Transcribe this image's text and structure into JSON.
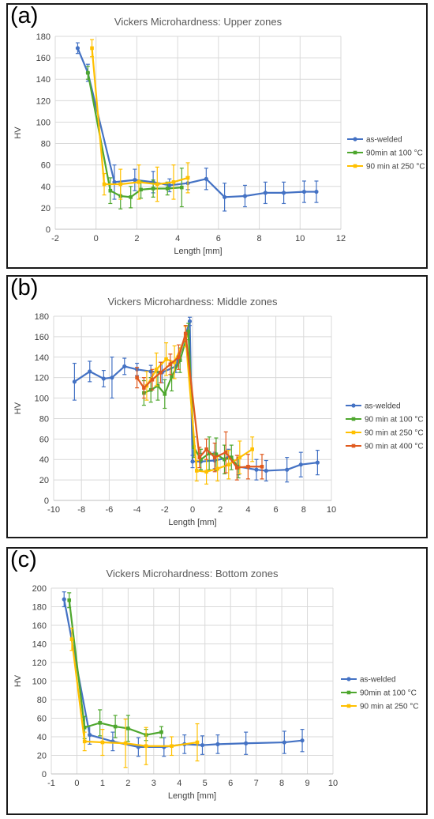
{
  "chart_data": [
    {
      "type": "line",
      "panel_label": "(a)",
      "title": "Vickers Microhardness: Upper zones",
      "xlabel": "Length [mm]",
      "ylabel": "HV",
      "xlim": [
        -2,
        12
      ],
      "ylim": [
        0,
        180
      ],
      "xticks": [
        -2,
        0,
        2,
        4,
        6,
        8,
        10,
        12
      ],
      "yticks": [
        0,
        20,
        40,
        60,
        80,
        100,
        120,
        140,
        160,
        180
      ],
      "grid": true,
      "legend_position": "right",
      "series": [
        {
          "name": "as-welded",
          "color": "#4472C4",
          "x": [
            -0.9,
            -0.4,
            0.9,
            1.9,
            2.8,
            3.6,
            4.5,
            5.4,
            6.3,
            7.3,
            8.3,
            9.2,
            10.2,
            10.8
          ],
          "y": [
            169,
            146,
            44,
            46,
            44,
            41,
            43,
            47,
            30,
            31,
            34,
            34,
            35,
            35
          ],
          "err": [
            5,
            8,
            16,
            10,
            10,
            6,
            6,
            10,
            13,
            10,
            10,
            10,
            10,
            10
          ]
        },
        {
          "name": "90min at 100 °C",
          "color": "#4EA72E",
          "x": [
            -0.4,
            0.7,
            1.2,
            1.7,
            2.2,
            2.8,
            3.5,
            4.2
          ],
          "y": [
            146,
            36,
            31,
            30,
            37,
            38,
            38,
            39
          ],
          "err": [
            6,
            12,
            12,
            10,
            8,
            8,
            6,
            18
          ]
        },
        {
          "name": "90 min at 250 °C",
          "color": "#FFC000",
          "x": [
            -0.2,
            0.4,
            1.2,
            2.1,
            3.0,
            3.8,
            4.5
          ],
          "y": [
            169,
            42,
            42,
            44,
            42,
            44,
            48
          ],
          "err": [
            8,
            10,
            14,
            16,
            16,
            16,
            14
          ]
        }
      ]
    },
    {
      "type": "line",
      "panel_label": "(b)",
      "title": "Vickers Microhardness: Middle zones",
      "xlabel": "Length [mm]",
      "ylabel": "HV",
      "xlim": [
        -10,
        10
      ],
      "ylim": [
        0,
        180
      ],
      "xticks": [
        -10,
        -8,
        -6,
        -4,
        -2,
        0,
        2,
        4,
        6,
        8,
        10
      ],
      "yticks": [
        0,
        20,
        40,
        60,
        80,
        100,
        120,
        140,
        160,
        180
      ],
      "grid": true,
      "legend_position": "right",
      "series": [
        {
          "name": "as-welded",
          "color": "#4472C4",
          "x": [
            -8.5,
            -7.4,
            -6.4,
            -5.8,
            -4.9,
            -4.0,
            -3.0,
            -2.2,
            -1.2,
            -0.2,
            0.0,
            0.6,
            1.6,
            2.6,
            3.3,
            4.6,
            5.3,
            6.8,
            7.8,
            9.0
          ],
          "y": [
            116,
            126,
            119,
            120,
            131,
            128,
            126,
            125,
            131,
            175,
            38,
            38,
            39,
            42,
            33,
            30,
            29,
            30,
            35,
            37
          ],
          "err": [
            18,
            10,
            8,
            20,
            8,
            6,
            6,
            10,
            6,
            4,
            6,
            8,
            8,
            8,
            8,
            10,
            10,
            12,
            12,
            12
          ]
        },
        {
          "name": "90 min at 100 °C",
          "color": "#4EA72E",
          "x": [
            -3.5,
            -3.0,
            -2.5,
            -2.0,
            -1.5,
            -0.9,
            -0.3,
            0.1,
            0.6,
            1.2,
            1.7,
            2.3,
            2.8,
            3.3
          ],
          "y": [
            105,
            108,
            112,
            104,
            121,
            137,
            165,
            52,
            40,
            46,
            45,
            40,
            42,
            32
          ],
          "err": [
            12,
            12,
            14,
            14,
            14,
            12,
            8,
            10,
            10,
            16,
            16,
            14,
            12,
            10
          ]
        },
        {
          "name": "90 min at 250 °C",
          "color": "#FFC000",
          "x": [
            -3.3,
            -2.6,
            -1.9,
            -1.3,
            -0.5,
            0.3,
            1.0,
            1.8,
            2.6,
            3.4,
            4.3
          ],
          "y": [
            112,
            128,
            138,
            135,
            160,
            29,
            28,
            31,
            35,
            42,
            50
          ],
          "err": [
            14,
            16,
            16,
            16,
            10,
            10,
            12,
            12,
            14,
            16,
            12
          ]
        },
        {
          "name": "90 min at 400 °C",
          "color": "#E05A1E",
          "x": [
            -4.0,
            -3.5,
            -2.9,
            -2.3,
            -1.6,
            -1.0,
            -0.5,
            0.5,
            1.0,
            1.6,
            2.4,
            3.2,
            4.0,
            5.0
          ],
          "y": [
            120,
            110,
            118,
            125,
            133,
            140,
            163,
            42,
            50,
            42,
            47,
            32,
            33,
            33
          ],
          "err": [
            10,
            10,
            10,
            10,
            10,
            12,
            8,
            10,
            10,
            14,
            20,
            12,
            12,
            12
          ]
        }
      ]
    },
    {
      "type": "line",
      "panel_label": "(c)",
      "title": "Vickers Microhardness: Bottom zones",
      "xlabel": "Length [mm]",
      "ylabel": "HV",
      "xlim": [
        -1,
        10
      ],
      "ylim": [
        0,
        200
      ],
      "xticks": [
        -1,
        0,
        1,
        2,
        3,
        4,
        5,
        6,
        7,
        8,
        9,
        10
      ],
      "yticks": [
        0,
        20,
        40,
        60,
        80,
        100,
        120,
        140,
        160,
        180,
        200
      ],
      "grid": true,
      "legend_position": "right",
      "series": [
        {
          "name": "as-welded",
          "color": "#4472C4",
          "x": [
            -0.5,
            0.5,
            1.4,
            2.4,
            3.4,
            4.2,
            4.9,
            5.5,
            6.6,
            8.1,
            8.8
          ],
          "y": [
            188,
            42,
            35,
            29,
            29,
            32,
            31,
            32,
            33,
            34,
            36
          ],
          "err": [
            8,
            10,
            10,
            10,
            10,
            10,
            10,
            10,
            12,
            12,
            12
          ]
        },
        {
          "name": "90min at 100 °C",
          "color": "#4EA72E",
          "x": [
            -0.3,
            0.3,
            0.9,
            1.5,
            2.0,
            2.7,
            3.3
          ],
          "y": [
            187,
            50,
            55,
            51,
            49,
            42,
            45
          ],
          "err": [
            8,
            12,
            14,
            12,
            14,
            6,
            6
          ]
        },
        {
          "name": "90 min at 250 °C",
          "color": "#FFC000",
          "x": [
            -0.2,
            0.3,
            1.0,
            1.9,
            2.7,
            3.7,
            4.7
          ],
          "y": [
            145,
            35,
            34,
            33,
            30,
            30,
            34
          ],
          "err": [
            12,
            10,
            14,
            26,
            20,
            10,
            20
          ]
        }
      ]
    }
  ]
}
